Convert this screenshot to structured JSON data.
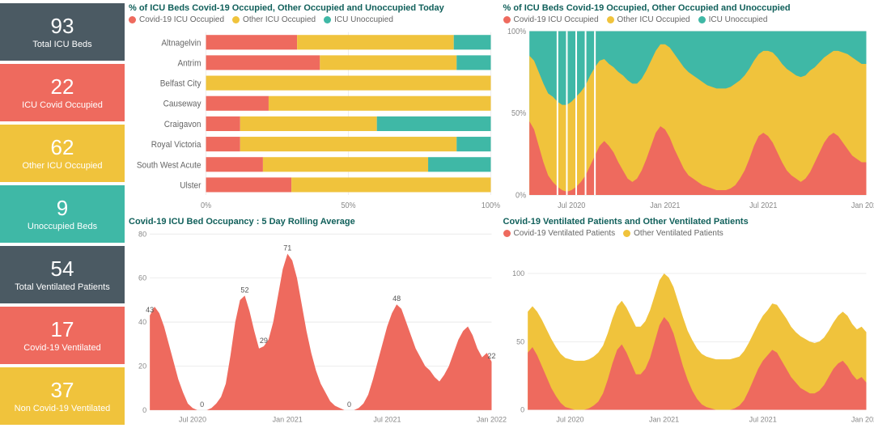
{
  "colors": {
    "slate": "#4b5a63",
    "red": "#ee6a5e",
    "yellow": "#f0c33c",
    "teal": "#3fb8a6",
    "title": "#11605b",
    "grid": "#dddddd",
    "axis": "#888888"
  },
  "sidebar": [
    {
      "value": "93",
      "label": "Total ICU Beds",
      "color_key": "slate"
    },
    {
      "value": "22",
      "label": "ICU Covid Occupied",
      "color_key": "red"
    },
    {
      "value": "62",
      "label": "Other ICU Occupied",
      "color_key": "yellow"
    },
    {
      "value": "9",
      "label": "Unoccupied Beds",
      "color_key": "teal"
    },
    {
      "value": "54",
      "label": "Total Ventilated Patients",
      "color_key": "slate"
    },
    {
      "value": "17",
      "label": "Covid-19 Ventilated",
      "color_key": "red"
    },
    {
      "value": "37",
      "label": "Non Covid-19 Ventilated",
      "color_key": "yellow"
    }
  ],
  "panels": {
    "hbar": {
      "title": "% of ICU Beds Covid-19 Occupied, Other Occupied and Unoccupied Today",
      "legend": [
        {
          "label": "Covid-19 ICU Occupied",
          "color_key": "red"
        },
        {
          "label": "Other ICU Occupied",
          "color_key": "yellow"
        },
        {
          "label": "ICU Unoccupied",
          "color_key": "teal"
        }
      ],
      "categories": [
        "Altnagelvin",
        "Antrim",
        "Belfast City",
        "Causeway",
        "Craigavon",
        "Royal Victoria",
        "South West Acute",
        "Ulster"
      ],
      "series": [
        [
          32,
          55,
          13
        ],
        [
          40,
          48,
          12
        ],
        [
          0,
          100,
          0
        ],
        [
          22,
          78,
          0
        ],
        [
          12,
          48,
          40
        ],
        [
          12,
          76,
          12
        ],
        [
          20,
          58,
          22
        ],
        [
          30,
          70,
          0
        ]
      ],
      "xticks": [
        "0%",
        "50%",
        "100%"
      ]
    },
    "stacked_time": {
      "title": "% of ICU Beds Covid-19 Occupied, Other Occupied and Unoccupied",
      "legend": [
        {
          "label": "Covid-19 ICU Occupied",
          "color_key": "red"
        },
        {
          "label": "Other ICU Occupied",
          "color_key": "yellow"
        },
        {
          "label": "ICU Unoccupied",
          "color_key": "teal"
        }
      ],
      "yticks": [
        "0%",
        "50%",
        "100%"
      ],
      "xticks": [
        "Jul 2020",
        "Jan 2021",
        "Jul 2021",
        "Jan 2022"
      ],
      "red_pct": [
        45,
        40,
        30,
        20,
        12,
        8,
        5,
        3,
        2,
        3,
        5,
        8,
        12,
        18,
        24,
        30,
        33,
        30,
        26,
        20,
        15,
        10,
        8,
        10,
        15,
        22,
        30,
        38,
        42,
        40,
        35,
        28,
        22,
        16,
        12,
        10,
        8,
        6,
        5,
        4,
        3,
        3,
        3,
        4,
        6,
        10,
        15,
        22,
        30,
        36,
        38,
        36,
        32,
        26,
        20,
        15,
        12,
        10,
        8,
        10,
        14,
        20,
        26,
        32,
        36,
        38,
        36,
        32,
        28,
        24,
        22,
        20,
        20
      ],
      "yellow_pct": [
        40,
        42,
        45,
        48,
        50,
        52,
        52,
        52,
        53,
        54,
        55,
        55,
        55,
        55,
        54,
        52,
        50,
        50,
        52,
        55,
        58,
        60,
        60,
        58,
        56,
        54,
        52,
        50,
        50,
        52,
        55,
        58,
        60,
        62,
        63,
        63,
        63,
        63,
        62,
        62,
        62,
        62,
        62,
        62,
        62,
        60,
        58,
        55,
        52,
        50,
        50,
        52,
        55,
        58,
        60,
        62,
        63,
        63,
        64,
        63,
        62,
        58,
        55,
        52,
        50,
        50,
        52,
        55,
        58,
        60,
        60,
        60,
        60
      ],
      "has_gaps": [
        0,
        0,
        0,
        0,
        0,
        0,
        1,
        0,
        1,
        0,
        1,
        0,
        1,
        0,
        1,
        0,
        0,
        0,
        0,
        0,
        0,
        0,
        0,
        0,
        0,
        0,
        0,
        0,
        0,
        0,
        0,
        0,
        0,
        0,
        0,
        0,
        0,
        0,
        0,
        0,
        0,
        0,
        0,
        0,
        0,
        0,
        0,
        0,
        0,
        0,
        0,
        0,
        0,
        0,
        0,
        0,
        0,
        0,
        0,
        0,
        0,
        0,
        0,
        0,
        0,
        0,
        0,
        0,
        0,
        0,
        0,
        0,
        0
      ]
    },
    "rolling": {
      "title": "Covid-19 ICU Bed Occupancy : 5 Day Rolling Average",
      "color_key": "red",
      "ymax": 80,
      "yticks": [
        0,
        20,
        40,
        60,
        80
      ],
      "xticks": [
        "Jul 2020",
        "Jan 2021",
        "Jul 2021",
        "Jan 2022"
      ],
      "values": [
        43,
        47,
        44,
        38,
        30,
        22,
        14,
        8,
        3,
        1,
        0,
        0,
        0,
        1,
        3,
        6,
        12,
        25,
        40,
        50,
        52,
        45,
        36,
        28,
        29,
        32,
        40,
        52,
        64,
        71,
        68,
        60,
        48,
        36,
        26,
        18,
        12,
        8,
        4,
        2,
        1,
        0,
        0,
        0,
        1,
        3,
        7,
        14,
        22,
        30,
        38,
        44,
        48,
        46,
        40,
        34,
        28,
        24,
        20,
        18,
        15,
        13,
        16,
        20,
        26,
        32,
        36,
        38,
        34,
        28,
        24,
        26,
        22
      ],
      "peaks": [
        {
          "i": 0,
          "v": 43,
          "label": "43"
        },
        {
          "i": 20,
          "v": 52,
          "label": "52"
        },
        {
          "i": 24,
          "v": 29,
          "label": "29"
        },
        {
          "i": 29,
          "v": 71,
          "label": "71"
        },
        {
          "i": 42,
          "v": 0,
          "label": "0"
        },
        {
          "i": 11,
          "v": 0,
          "label": "0"
        },
        {
          "i": 52,
          "v": 48,
          "label": "48"
        },
        {
          "i": 72,
          "v": 22,
          "label": "22"
        }
      ]
    },
    "ventilated": {
      "title": "Covid-19 Ventilated Patients and Other Ventilated Patients",
      "legend": [
        {
          "label": "Covid-19 Ventilated Patients",
          "color_key": "red"
        },
        {
          "label": "Other Ventilated Patients",
          "color_key": "yellow"
        }
      ],
      "ymax": 120,
      "yticks": [
        0,
        50,
        100
      ],
      "xticks": [
        "Jul 2020",
        "Jan 2021",
        "Jul 2021",
        "Jan 2022"
      ],
      "red": [
        42,
        46,
        40,
        32,
        24,
        16,
        10,
        5,
        2,
        1,
        0,
        0,
        0,
        1,
        3,
        6,
        12,
        22,
        34,
        44,
        48,
        42,
        34,
        26,
        26,
        30,
        38,
        50,
        62,
        68,
        64,
        56,
        44,
        32,
        22,
        14,
        8,
        4,
        2,
        1,
        0,
        0,
        0,
        0,
        1,
        3,
        7,
        14,
        22,
        30,
        36,
        40,
        44,
        42,
        36,
        30,
        24,
        20,
        16,
        14,
        12,
        12,
        14,
        18,
        24,
        30,
        34,
        36,
        32,
        26,
        22,
        24,
        20
      ],
      "yellow": [
        30,
        30,
        32,
        34,
        35,
        36,
        36,
        36,
        36,
        36,
        36,
        36,
        36,
        36,
        36,
        36,
        35,
        34,
        33,
        32,
        32,
        33,
        34,
        35,
        35,
        35,
        35,
        34,
        33,
        32,
        33,
        34,
        35,
        36,
        36,
        37,
        37,
        37,
        37,
        37,
        37,
        37,
        37,
        37,
        37,
        36,
        36,
        35,
        34,
        33,
        33,
        33,
        34,
        35,
        36,
        37,
        37,
        37,
        38,
        38,
        38,
        37,
        36,
        35,
        34,
        34,
        35,
        36,
        37,
        37,
        37,
        37,
        37
      ]
    }
  }
}
